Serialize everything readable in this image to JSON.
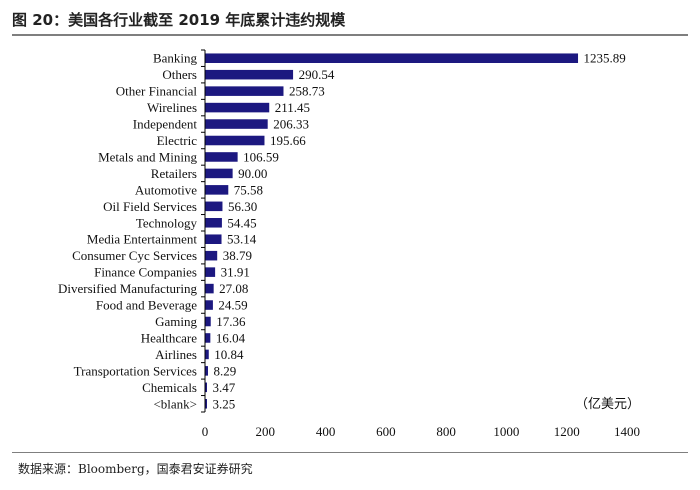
{
  "title": "图 20：美国各行业截至 2019 年底累计违约规模",
  "source": "数据来源：Bloomberg，国泰君安证券研究",
  "unit_label": "（亿美元）",
  "chart_data": {
    "type": "bar",
    "orientation": "horizontal",
    "title": "美国各行业截至 2019 年底累计违约规模",
    "xlabel": "",
    "ylabel": "",
    "unit": "亿美元",
    "xlim": [
      0,
      1400
    ],
    "xticks": [
      0,
      200,
      400,
      600,
      800,
      1000,
      1200,
      1400
    ],
    "grid": false,
    "bar_color": "#1c1880",
    "categories": [
      "Banking",
      "Others",
      "Other Financial",
      "Wirelines",
      "Independent",
      "Electric",
      "Metals and Mining",
      "Retailers",
      "Automotive",
      "Oil Field Services",
      "Technology",
      "Media Entertainment",
      "Consumer Cyc Services",
      "Finance Companies",
      "Diversified Manufacturing",
      "Food and Beverage",
      "Gaming",
      "Healthcare",
      "Airlines",
      "Transportation Services",
      "Chemicals",
      "<blank>"
    ],
    "values": [
      1235.89,
      290.54,
      258.73,
      211.45,
      206.33,
      195.66,
      106.59,
      90.0,
      75.58,
      56.3,
      54.45,
      53.14,
      38.79,
      31.91,
      27.08,
      24.59,
      17.36,
      16.04,
      10.84,
      8.29,
      3.47,
      3.25
    ],
    "value_labels": [
      "1235.89",
      "290.54",
      "258.73",
      "211.45",
      "206.33",
      "195.66",
      "106.59",
      "90.00",
      "75.58",
      "56.30",
      "54.45",
      "53.14",
      "38.79",
      "31.91",
      "27.08",
      "24.59",
      "17.36",
      "16.04",
      "10.84",
      "8.29",
      "3.47",
      "3.25"
    ]
  }
}
